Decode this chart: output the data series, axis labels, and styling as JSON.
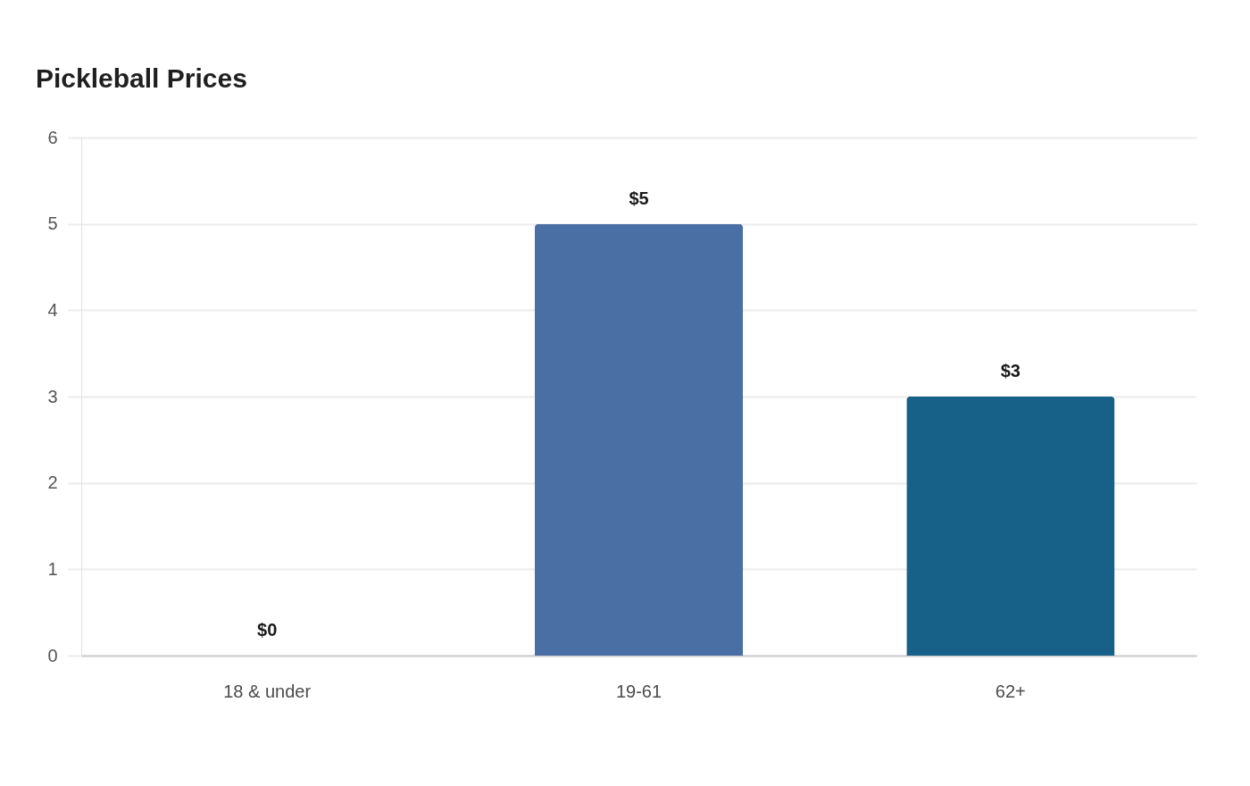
{
  "chart_data": {
    "type": "bar",
    "title": "Pickleball Prices",
    "categories": [
      "18 & under",
      "19-61",
      "62+"
    ],
    "values": [
      0,
      5,
      3
    ],
    "colors": [
      "#4a6fa5",
      "#4a6fa5",
      "#176087"
    ],
    "value_labels": [
      "$0",
      "$5",
      "$3"
    ],
    "ylim": [
      0,
      6
    ],
    "yticks": [
      0,
      1,
      2,
      3,
      4,
      5,
      6
    ],
    "grid": "y"
  }
}
